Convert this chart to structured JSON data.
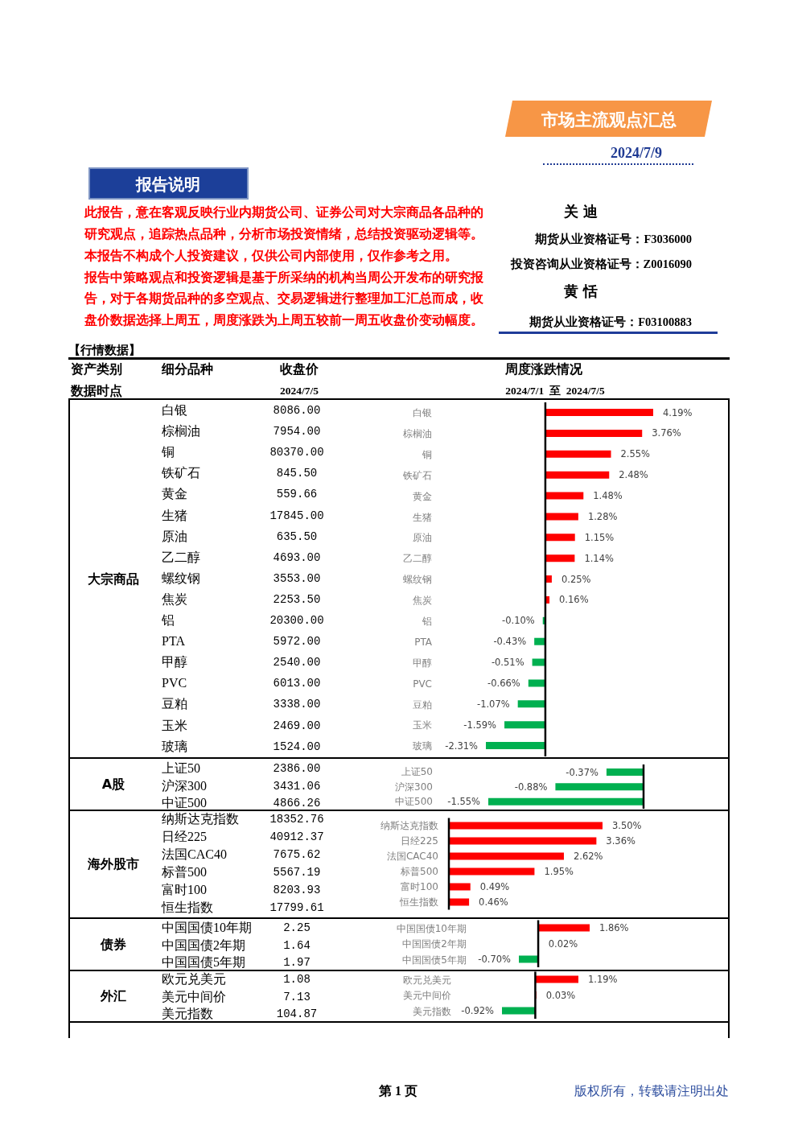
{
  "chart_data": [
    {
      "type": "other",
      "title": "市场主流观点汇总",
      "subtitle": "2024/7/9",
      "annotations": [
        "报告说明",
        "此报告，意在客观反映行业内期货公司、证券公司对大宗商品各品种的",
        "研究观点，追踪热点品种，分析市场投资情绪，总结投资驱动逻辑等。",
        "本报告不构成个人投资建议，仅供公司内部使用，仅作参考之用。",
        "报告中策略观点和投资逻辑是基于所采纳的机构当周公开发布的研究报",
        "告，对于各期货品种的多空观点、交易逻辑进行整理加工汇总而成，收",
        "盘价数据选择上周五，周度涨跌为上周五较前一周五收盘价变动幅度。",
        "关 迪",
        "期货从业资格证号：F3036000",
        "投资咨询从业资格证号：Z0016090",
        "黄 恬",
        "期货从业资格证号：F03100883",
        "【行情数据】",
        "资产类别",
        "细分品种",
        "收盘价",
        "周度涨跌情况",
        "数据时点",
        "2024/7/5",
        "2024/7/1  至  2024/7/5"
      ]
    },
    {
      "type": "other",
      "title": "大宗商品",
      "categories": [
        "白银",
        "棕榈油",
        "铜",
        "铁矿石",
        "黄金",
        "生猪",
        "原油",
        "乙二醇",
        "螺纹钢",
        "焦炭",
        "铝",
        "PTA",
        "甲醇",
        "PVC",
        "豆粕",
        "玉米",
        "玻璃"
      ],
      "values": [
        8086,
        7954,
        80370,
        845.5,
        559.66,
        17845,
        635.5,
        4693,
        3553,
        2253.5,
        20300,
        5972,
        2540,
        6013,
        3338,
        2469,
        1524
      ],
      "value_labels": [
        "8086.00",
        "7954.00",
        "80370.00",
        "845.50",
        "559.66",
        "17845.00",
        "635.50",
        "4693.00",
        "3553.00",
        "2253.50",
        "20300.00",
        "5972.00",
        "2540.00",
        "6013.00",
        "3338.00",
        "2469.00",
        "1524.00"
      ]
    },
    {
      "type": "bar",
      "orientation": "horizontal",
      "categories": [
        "白银",
        "棕榈油",
        "铜",
        "铁矿石",
        "黄金",
        "生猪",
        "原油",
        "乙二醇",
        "螺纹钢",
        "焦炭",
        "铝",
        "PTA",
        "甲醇",
        "PVC",
        "豆粕",
        "玉米",
        "玻璃"
      ],
      "values": [
        4.19,
        3.76,
        2.55,
        2.48,
        1.48,
        1.28,
        1.15,
        1.14,
        0.25,
        0.16,
        -0.1,
        -0.43,
        -0.51,
        -0.66,
        -1.07,
        -1.59,
        -2.31
      ],
      "colors": [
        "#ff0000",
        "#ff0000",
        "#ff0000",
        "#ff0000",
        "#ff0000",
        "#ff0000",
        "#ff0000",
        "#ff0000",
        "#ff0000",
        "#ff0000",
        "#00b050",
        "#00b050",
        "#00b050",
        "#00b050",
        "#00b050",
        "#00b050",
        "#00b050"
      ],
      "value_labels": [
        "4.19%",
        "3.76%",
        "2.55%",
        "2.48%",
        "1.48%",
        "1.28%",
        "1.15%",
        "1.14%",
        "0.25%",
        "0.16%",
        "-0.10%",
        "-0.43%",
        "-0.51%",
        "-0.66%",
        "-1.07%",
        "-1.59%",
        "-2.31%"
      ]
    },
    {
      "type": "other",
      "title": "A股",
      "categories": [
        "上证50",
        "沪深300",
        "中证500"
      ],
      "values": [
        2386,
        3431.06,
        4866.26
      ],
      "value_labels": [
        "2386.00",
        "3431.06",
        "4866.26"
      ]
    },
    {
      "type": "bar",
      "orientation": "horizontal",
      "categories": [
        "上证50",
        "沪深300",
        "中证500"
      ],
      "values": [
        -0.37,
        -0.88,
        -1.55
      ],
      "colors": [
        "#00b050",
        "#00b050",
        "#00b050"
      ],
      "value_labels": [
        "-0.37%",
        "-0.88%",
        "-1.55%"
      ]
    },
    {
      "type": "other",
      "title": "海外股市",
      "categories": [
        "纳斯达克指数",
        "日经225",
        "法国CAC40",
        "标普500",
        "富时100",
        "恒生指数"
      ],
      "values": [
        18352.76,
        40912.37,
        7675.62,
        5567.19,
        8203.93,
        17799.61
      ],
      "value_labels": [
        "18352.76",
        "40912.37",
        "7675.62",
        "5567.19",
        "8203.93",
        "17799.61"
      ]
    },
    {
      "type": "bar",
      "orientation": "horizontal",
      "categories": [
        "纳斯达克指数",
        "日经225",
        "法国CAC40",
        "标普500",
        "富时100",
        "恒生指数"
      ],
      "values": [
        3.5,
        3.36,
        2.62,
        1.95,
        0.49,
        0.46
      ],
      "colors": [
        "#ff0000",
        "#ff0000",
        "#ff0000",
        "#ff0000",
        "#ff0000",
        "#ff0000"
      ],
      "value_labels": [
        "3.50%",
        "3.36%",
        "2.62%",
        "1.95%",
        "0.49%",
        "0.46%"
      ]
    },
    {
      "type": "other",
      "title": "债券",
      "categories": [
        "中国国债10年期",
        "中国国债2年期",
        "中国国债5年期"
      ],
      "values": [
        2.25,
        1.64,
        1.97
      ],
      "value_labels": [
        "2.25",
        "1.64",
        "1.97"
      ]
    },
    {
      "type": "bar",
      "orientation": "horizontal",
      "categories": [
        "中国国债10年期",
        "中国国债2年期",
        "中国国债5年期"
      ],
      "values": [
        1.86,
        0.02,
        -0.7
      ],
      "colors": [
        "#ff0000",
        "#ff0000",
        "#00b050"
      ],
      "value_labels": [
        "1.86%",
        "0.02%",
        "-0.70%"
      ]
    },
    {
      "type": "other",
      "title": "外汇",
      "categories": [
        "欧元兑美元",
        "美元中间价",
        "美元指数"
      ],
      "values": [
        1.08,
        7.13,
        104.87
      ],
      "value_labels": [
        "1.08",
        "7.13",
        "104.87"
      ]
    },
    {
      "type": "bar",
      "orientation": "horizontal",
      "categories": [
        "欧元兑美元",
        "美元中间价",
        "美元指数"
      ],
      "values": [
        1.19,
        0.03,
        -0.92
      ],
      "colors": [
        "#ff0000",
        "#ff0000",
        "#00b050"
      ],
      "value_labels": [
        "1.19%",
        "0.03%",
        "-0.92%"
      ]
    },
    {
      "type": "other",
      "annotations": [
        "第 1 页",
        "版权所有，转载请注明出处"
      ]
    }
  ]
}
